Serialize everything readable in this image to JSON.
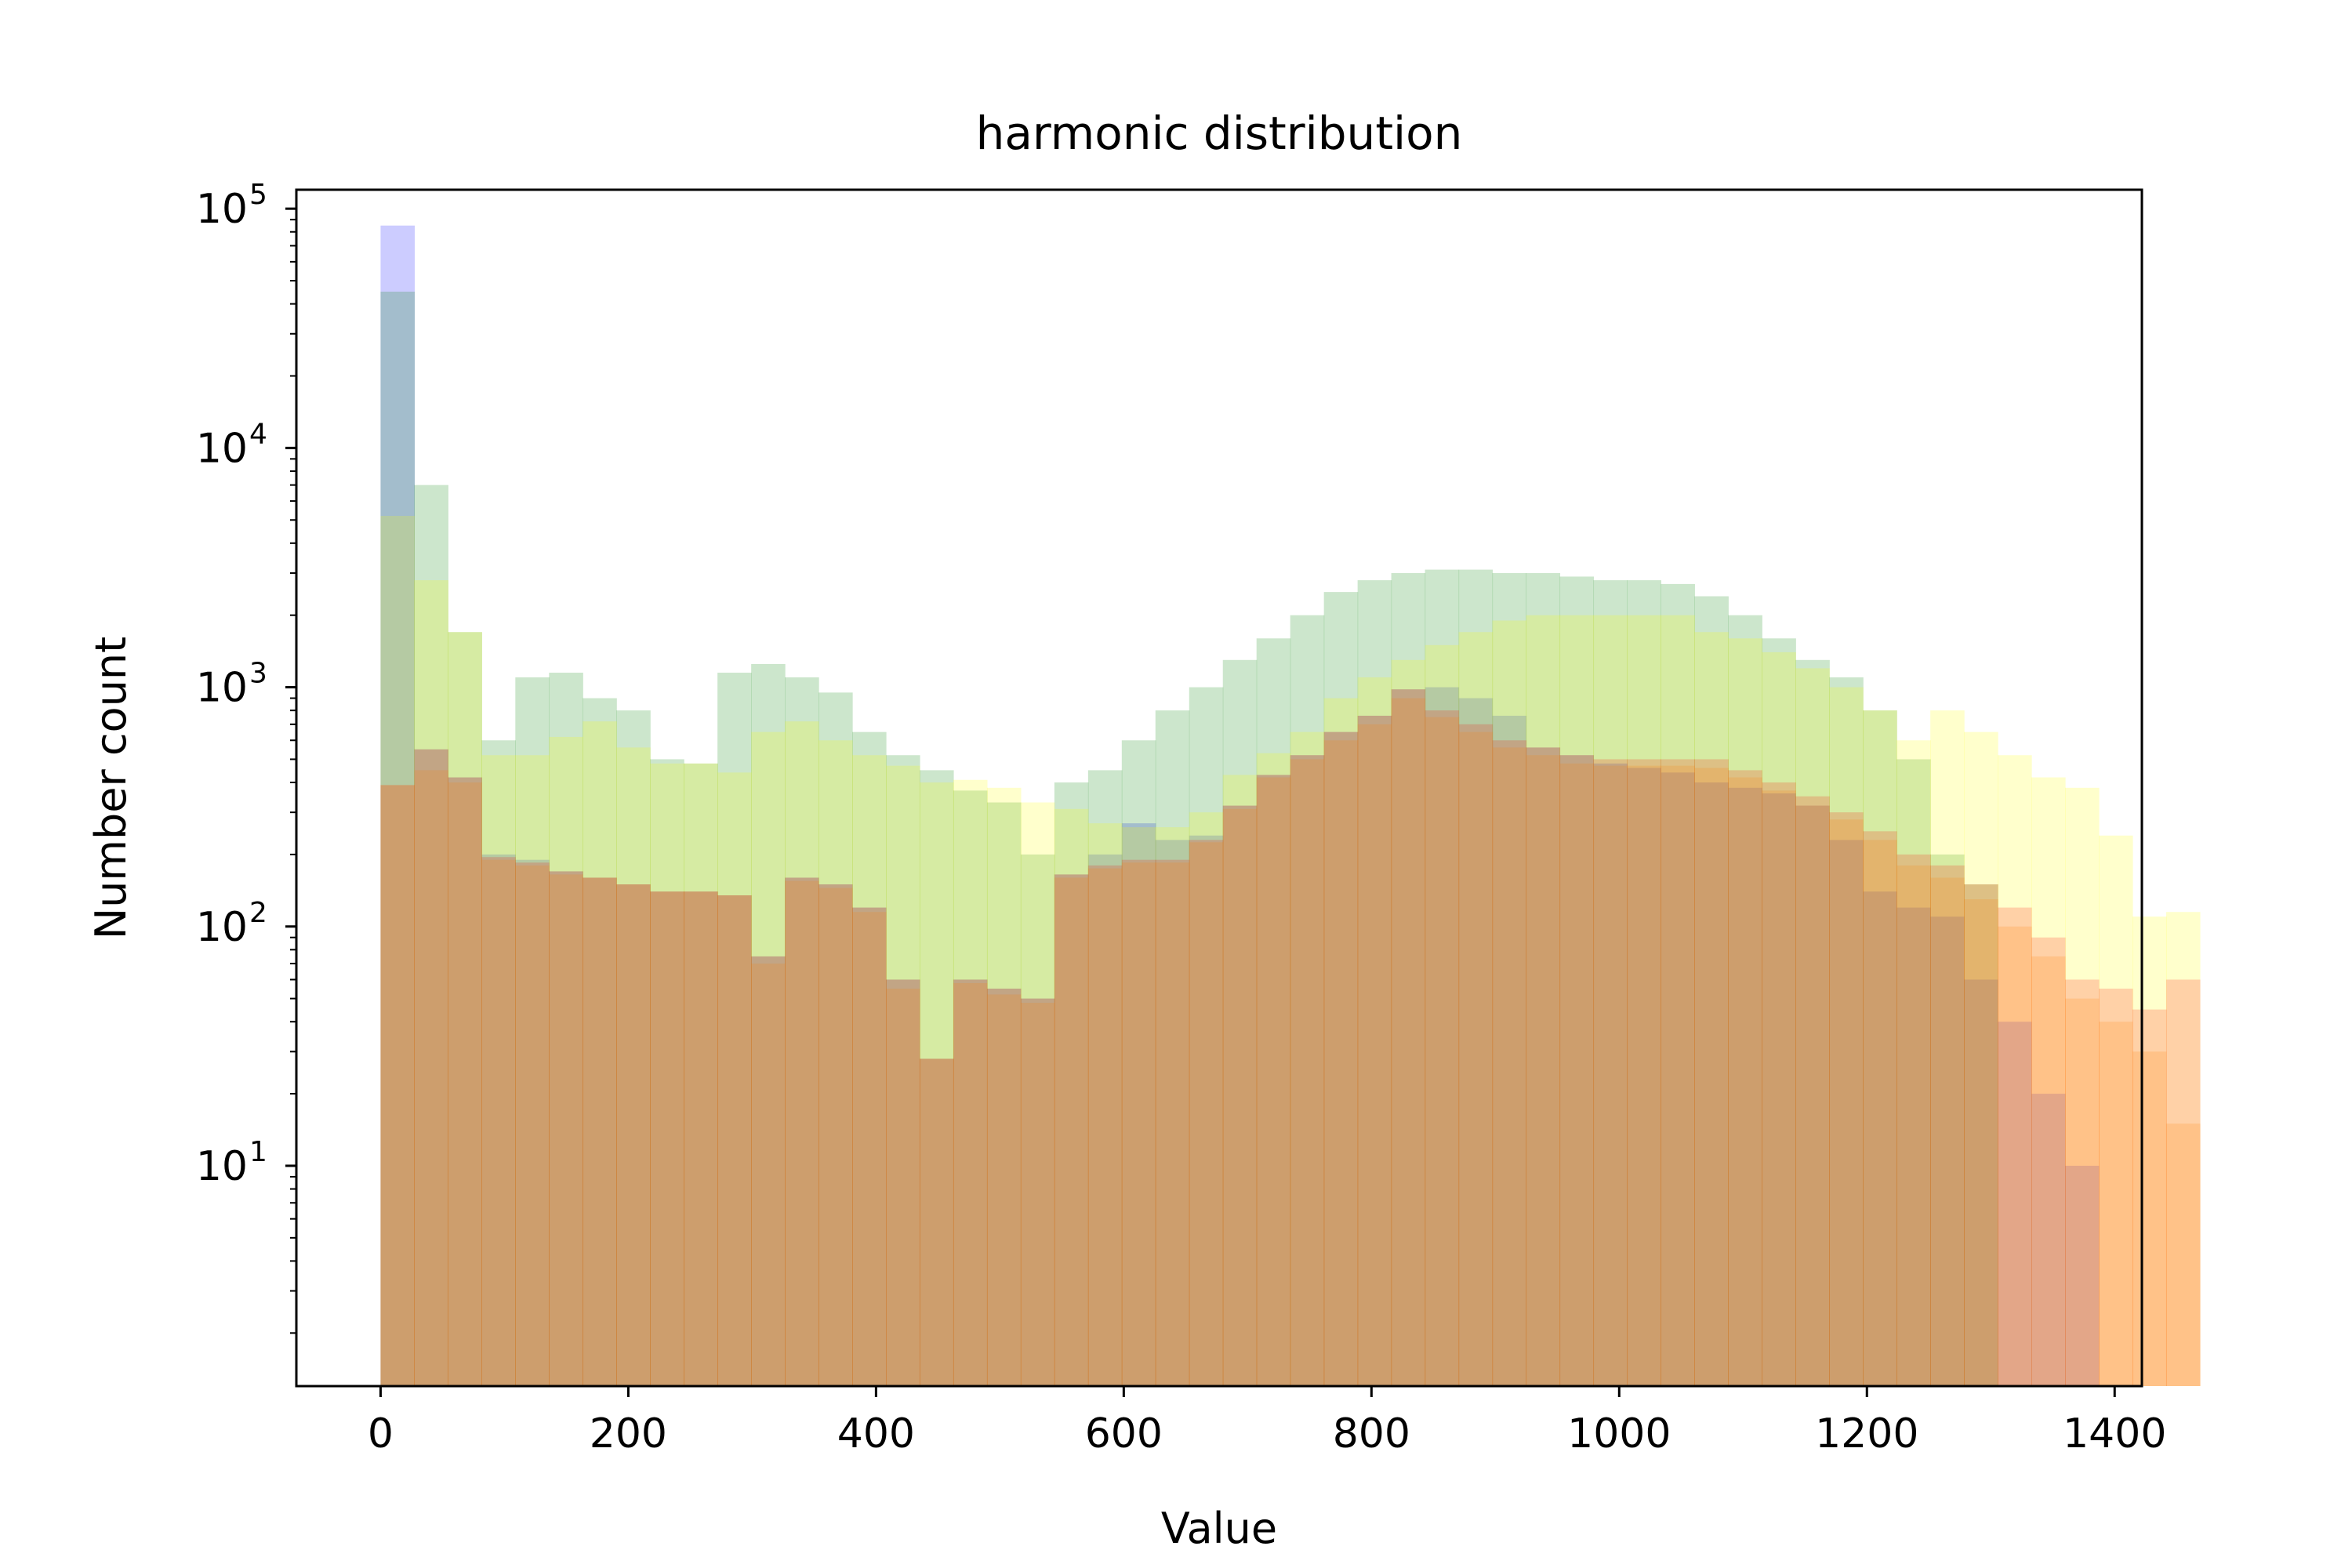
{
  "chart_data": {
    "type": "bar",
    "title": "harmonic distribution",
    "xlabel": "Value",
    "ylabel": "Number count",
    "yscale": "log",
    "xlim": [
      -68,
      1422
    ],
    "ylim": [
      1.2,
      120000
    ],
    "grid": false,
    "legend": "none",
    "x_ticks": [
      {
        "value": 0,
        "label": "0"
      },
      {
        "value": 200,
        "label": "200"
      },
      {
        "value": 400,
        "label": "400"
      },
      {
        "value": 600,
        "label": "600"
      },
      {
        "value": 800,
        "label": "800"
      },
      {
        "value": 1000,
        "label": "1000"
      },
      {
        "value": 1200,
        "label": "1200"
      },
      {
        "value": 1400,
        "label": "1400"
      }
    ],
    "y_ticks": [
      {
        "value": 10,
        "base": "10",
        "exp": "1"
      },
      {
        "value": 100,
        "base": "10",
        "exp": "2"
      },
      {
        "value": 1000,
        "base": "10",
        "exp": "3"
      },
      {
        "value": 10000,
        "base": "10",
        "exp": "4"
      },
      {
        "value": 100000,
        "base": "10",
        "exp": "5"
      }
    ],
    "series": [
      {
        "color": "#0000ff",
        "opacity": 0.2,
        "bin_start": 0,
        "bin_width": 27.2,
        "values": [
          85000,
          550,
          420,
          200,
          190,
          170,
          160,
          150,
          140,
          140,
          135,
          75,
          160,
          150,
          120,
          60,
          28,
          60,
          55,
          50,
          165,
          200,
          270,
          230,
          240,
          320,
          430,
          520,
          650,
          760,
          980,
          1000,
          900,
          760,
          560,
          520,
          480,
          460,
          440,
          400,
          380,
          360,
          320,
          230,
          140,
          120,
          110,
          60,
          40,
          20,
          10
        ]
      },
      {
        "color": "#008000",
        "opacity": 0.2,
        "bin_start": 0,
        "bin_width": 27.2,
        "values": [
          45000,
          7000,
          1700,
          600,
          1100,
          1150,
          900,
          800,
          500,
          480,
          1150,
          1250,
          1100,
          950,
          650,
          520,
          450,
          370,
          330,
          200,
          400,
          450,
          600,
          800,
          1000,
          1300,
          1600,
          2000,
          2500,
          2800,
          3000,
          3100,
          3100,
          3000,
          3000,
          2900,
          2800,
          2800,
          2700,
          2400,
          2000,
          1600,
          1300,
          1100,
          800,
          500,
          200,
          150
        ]
      },
      {
        "color": "#ffff00",
        "opacity": 0.2,
        "bin_start": 0,
        "bin_width": 27.2,
        "values": [
          5200,
          2800,
          1700,
          520,
          520,
          620,
          720,
          560,
          480,
          480,
          440,
          650,
          720,
          600,
          520,
          470,
          400,
          410,
          380,
          330,
          310,
          270,
          260,
          260,
          300,
          430,
          530,
          650,
          900,
          1100,
          1300,
          1500,
          1700,
          1900,
          2000,
          2000,
          2000,
          2000,
          2000,
          1700,
          1600,
          1400,
          1200,
          1000,
          800,
          600,
          800,
          650,
          520,
          420,
          380,
          240,
          110,
          115
        ]
      },
      {
        "color": "#ff0000",
        "opacity": 0.18,
        "bin_start": 0,
        "bin_width": 27.2,
        "values": [
          390,
          550,
          420,
          195,
          185,
          170,
          160,
          150,
          140,
          140,
          135,
          75,
          160,
          150,
          120,
          60,
          28,
          60,
          55,
          50,
          165,
          180,
          190,
          190,
          230,
          320,
          430,
          520,
          650,
          760,
          980,
          800,
          700,
          600,
          560,
          520,
          500,
          500,
          500,
          500,
          450,
          400,
          350,
          300,
          250,
          200,
          180,
          150,
          120,
          90,
          60,
          55,
          45,
          60
        ]
      },
      {
        "color": "#ff8000",
        "opacity": 0.18,
        "bin_start": 0,
        "bin_width": 27.2,
        "values": [
          390,
          450,
          400,
          190,
          180,
          165,
          160,
          150,
          140,
          140,
          135,
          70,
          155,
          145,
          115,
          55,
          28,
          58,
          52,
          48,
          160,
          175,
          185,
          185,
          225,
          310,
          420,
          500,
          600,
          700,
          900,
          750,
          650,
          560,
          520,
          480,
          470,
          470,
          470,
          460,
          420,
          370,
          320,
          280,
          230,
          180,
          160,
          130,
          100,
          75,
          50,
          40,
          30,
          15
        ]
      }
    ]
  }
}
